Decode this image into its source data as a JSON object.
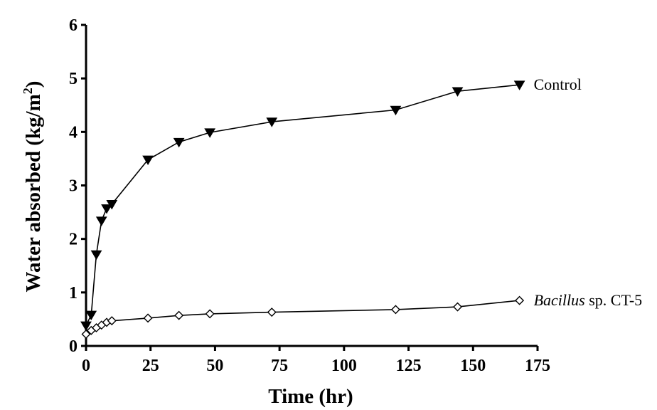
{
  "chart_data": {
    "type": "line",
    "xlabel": "Time (hr)",
    "ylabel": "Water absorbed (kg/m²)",
    "ylabel_parts": {
      "main": "Water absorbed (kg/m",
      "sup": "2",
      "end": ")"
    },
    "xlim": [
      0,
      175
    ],
    "ylim": [
      0,
      6
    ],
    "xticks": [
      0,
      25,
      50,
      75,
      100,
      125,
      150,
      175
    ],
    "yticks": [
      0,
      1,
      2,
      3,
      4,
      5,
      6
    ],
    "grid": false,
    "legend": "none",
    "series": [
      {
        "name": "Control",
        "marker": "filled-triangle-down",
        "label_parts": {
          "italic": "",
          "normal": "Control"
        },
        "x": [
          0,
          2,
          4,
          6,
          8,
          10,
          24,
          36,
          48,
          72,
          120,
          144,
          168
        ],
        "y": [
          0.38,
          0.58,
          1.71,
          2.34,
          2.57,
          2.65,
          3.48,
          3.81,
          3.99,
          4.19,
          4.41,
          4.76,
          4.88
        ]
      },
      {
        "name": "Bacillus sp. CT-5",
        "marker": "open-diamond",
        "label_parts": {
          "italic": "Bacillus",
          "normal": " sp. CT-5"
        },
        "x": [
          0,
          2,
          4,
          6,
          8,
          10,
          24,
          36,
          48,
          72,
          120,
          144,
          168
        ],
        "y": [
          0.22,
          0.29,
          0.34,
          0.39,
          0.44,
          0.47,
          0.52,
          0.57,
          0.6,
          0.63,
          0.68,
          0.73,
          0.85
        ]
      }
    ]
  }
}
